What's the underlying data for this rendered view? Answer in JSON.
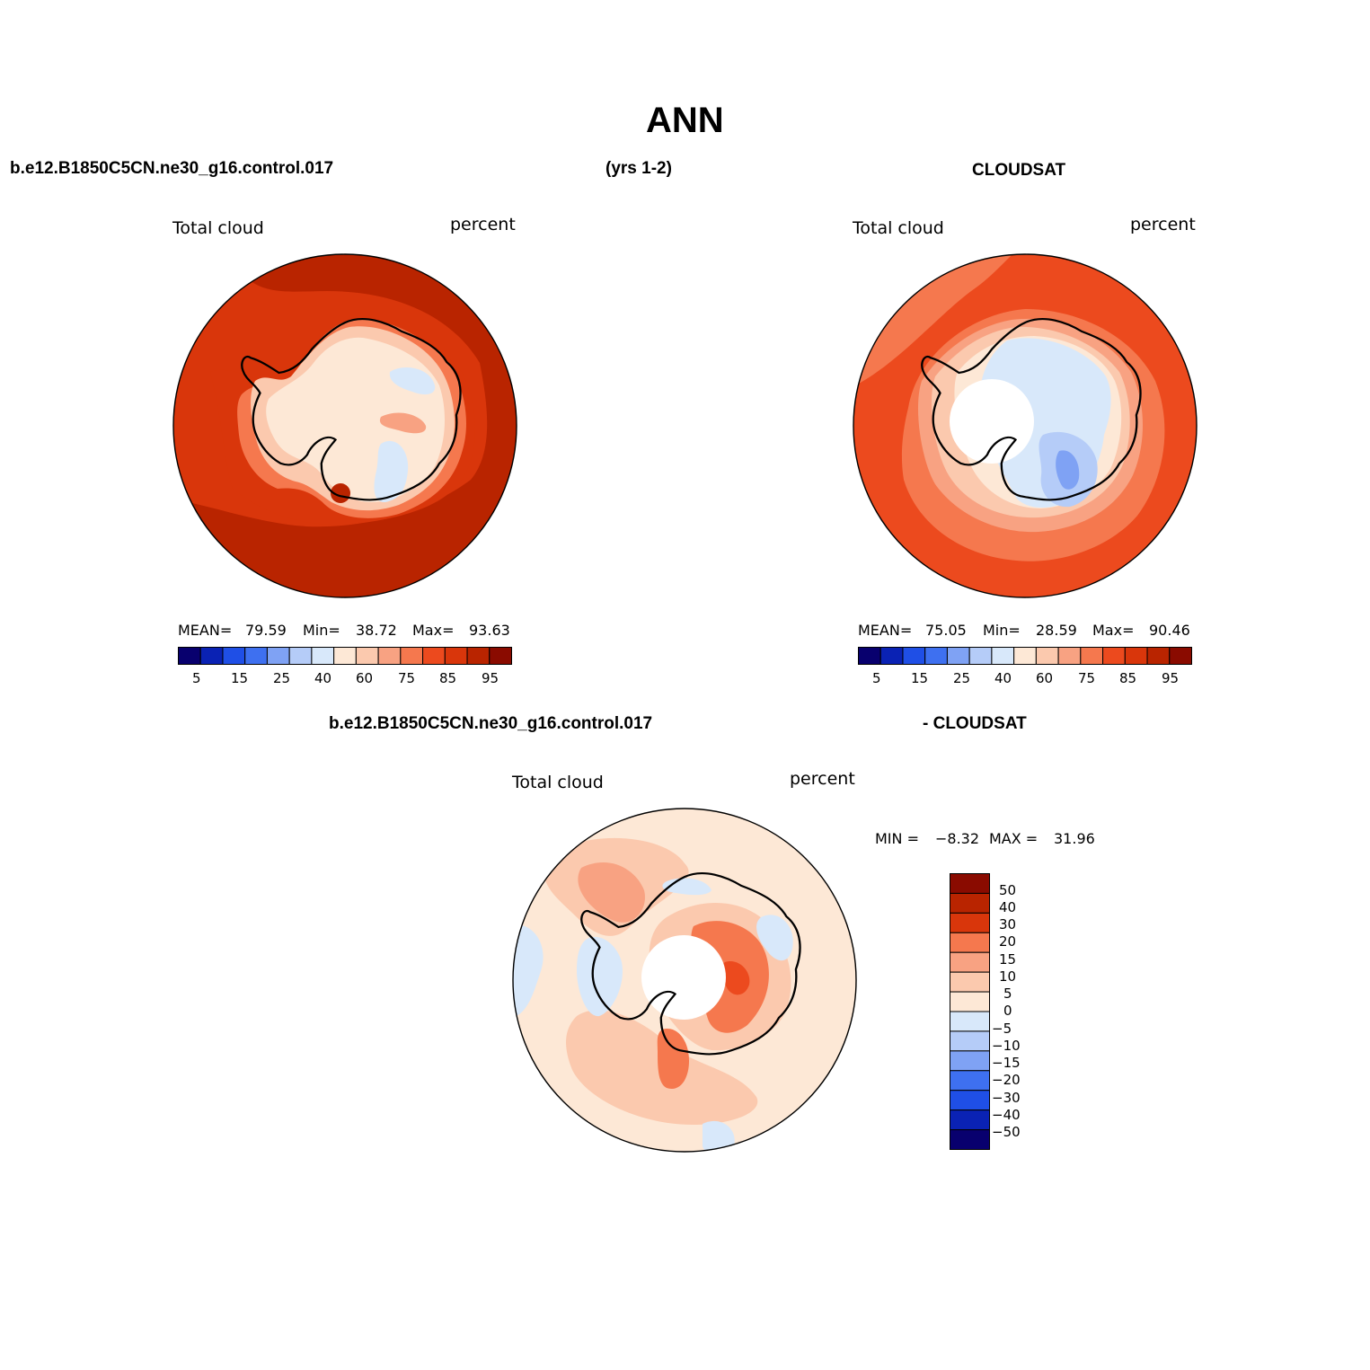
{
  "title": "ANN",
  "header": {
    "case": "b.e12.B1850C5CN.ne30_g16.control.017",
    "years": "(yrs 1-2)",
    "obs": "CLOUDSAT"
  },
  "colors": {
    "abs_palette": [
      "#08006e",
      "#0a22b4",
      "#1f4fe6",
      "#3e70f0",
      "#7fa2f4",
      "#b5ccf8",
      "#d8e8fa",
      "#fde8d6",
      "#fbc9ae",
      "#f8a282",
      "#f5784e",
      "#ec4a1e",
      "#d9360b",
      "#b92400",
      "#8a0b00"
    ],
    "diff_palette": [
      "#8a0b00",
      "#b92400",
      "#d9360b",
      "#f5784e",
      "#f8a282",
      "#fbc9ae",
      "#fde8d6",
      "#d8e8fa",
      "#b5ccf8",
      "#7fa2f4",
      "#3e70f0",
      "#1f4fe6",
      "#0a22b4",
      "#08006e"
    ]
  },
  "panels": {
    "model": {
      "label": "Total cloud",
      "units": "percent",
      "mean_label": "MEAN=",
      "mean": "79.59",
      "min_label": "Min=",
      "min": "38.72",
      "max_label": "Max=",
      "max": "93.63",
      "ticks": [
        "5",
        "15",
        "25",
        "40",
        "60",
        "75",
        "85",
        "95"
      ]
    },
    "obs": {
      "label": "Total cloud",
      "units": "percent",
      "mean_label": "MEAN=",
      "mean": "75.05",
      "min_label": "Min=",
      "min": "28.59",
      "max_label": "Max=",
      "max": "90.46",
      "ticks": [
        "5",
        "15",
        "25",
        "40",
        "60",
        "75",
        "85",
        "95"
      ]
    },
    "diff": {
      "title_left": "b.e12.B1850C5CN.ne30_g16.control.017",
      "title_right": "- CLOUDSAT",
      "label": "Total cloud",
      "units": "percent",
      "min_label": "MIN =",
      "min": "−8.32",
      "max_label": "MAX =",
      "max": "31.96",
      "ticks": [
        "50",
        "40",
        "30",
        "20",
        "15",
        "10",
        "5",
        "0",
        "−5",
        "−10",
        "−15",
        "−20",
        "−30",
        "−40",
        "−50"
      ]
    }
  }
}
